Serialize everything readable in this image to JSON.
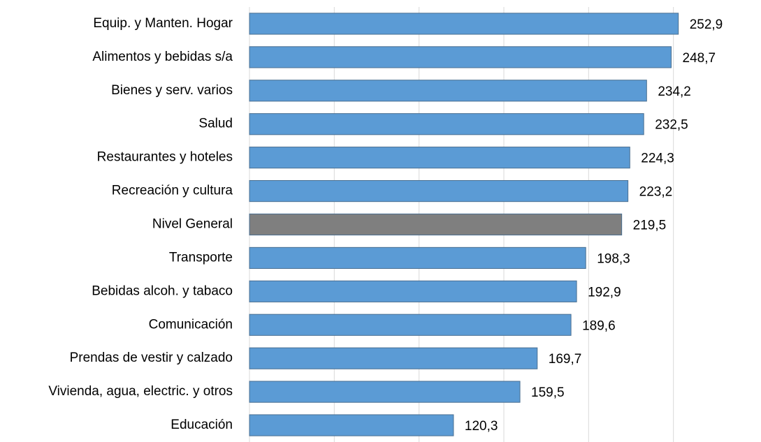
{
  "chart_data": {
    "type": "barh",
    "categories": [
      "Equip. y Manten. Hogar",
      "Alimentos y bebidas s/a",
      "Bienes y serv. varios",
      "Salud",
      "Restaurantes y hoteles",
      "Recreación y cultura",
      "Nivel General",
      "Transporte",
      "Bebidas alcoh. y tabaco",
      "Comunicación",
      "Prendas de vestir y calzado",
      "Vivienda, agua, electric. y otros",
      "Educación"
    ],
    "values": [
      252.9,
      248.7,
      234.2,
      232.5,
      224.3,
      223.2,
      219.5,
      198.3,
      192.9,
      189.6,
      169.7,
      159.5,
      120.3
    ],
    "value_labels": [
      "252,9",
      "248,7",
      "234,2",
      "232,5",
      "224,3",
      "223,2",
      "219,5",
      "198,3",
      "192,9",
      "189,6",
      "169,7",
      "159,5",
      "120,3"
    ],
    "colors": [
      "#5b9bd5",
      "#5b9bd5",
      "#5b9bd5",
      "#5b9bd5",
      "#5b9bd5",
      "#5b9bd5",
      "#7f7f7f",
      "#5b9bd5",
      "#5b9bd5",
      "#5b9bd5",
      "#5b9bd5",
      "#5b9bd5",
      "#5b9bd5"
    ],
    "xlim": [
      0,
      300
    ],
    "xticks": [
      0,
      50,
      100,
      150,
      200,
      250
    ],
    "grid": true
  }
}
